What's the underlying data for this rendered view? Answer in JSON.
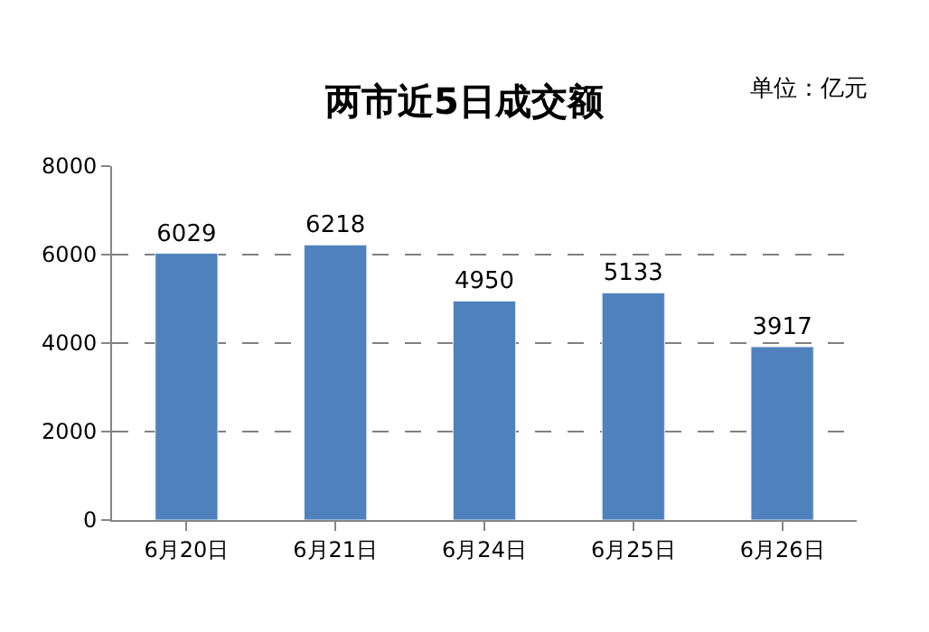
{
  "chart_data": {
    "type": "bar",
    "title": "两市近5日成交额",
    "annotations": [
      "单位：亿元"
    ],
    "categories": [
      "6月20日",
      "6月21日",
      "6月24日",
      "6月25日",
      "6月26日"
    ],
    "values": [
      6029,
      6218,
      4950,
      5133,
      3917
    ],
    "color": "#4f81bd",
    "ylim": [
      0,
      8000
    ],
    "yticks": [
      0,
      2000,
      4000,
      6000,
      8000
    ],
    "grid": "y",
    "data_labels": true,
    "legend": false
  }
}
